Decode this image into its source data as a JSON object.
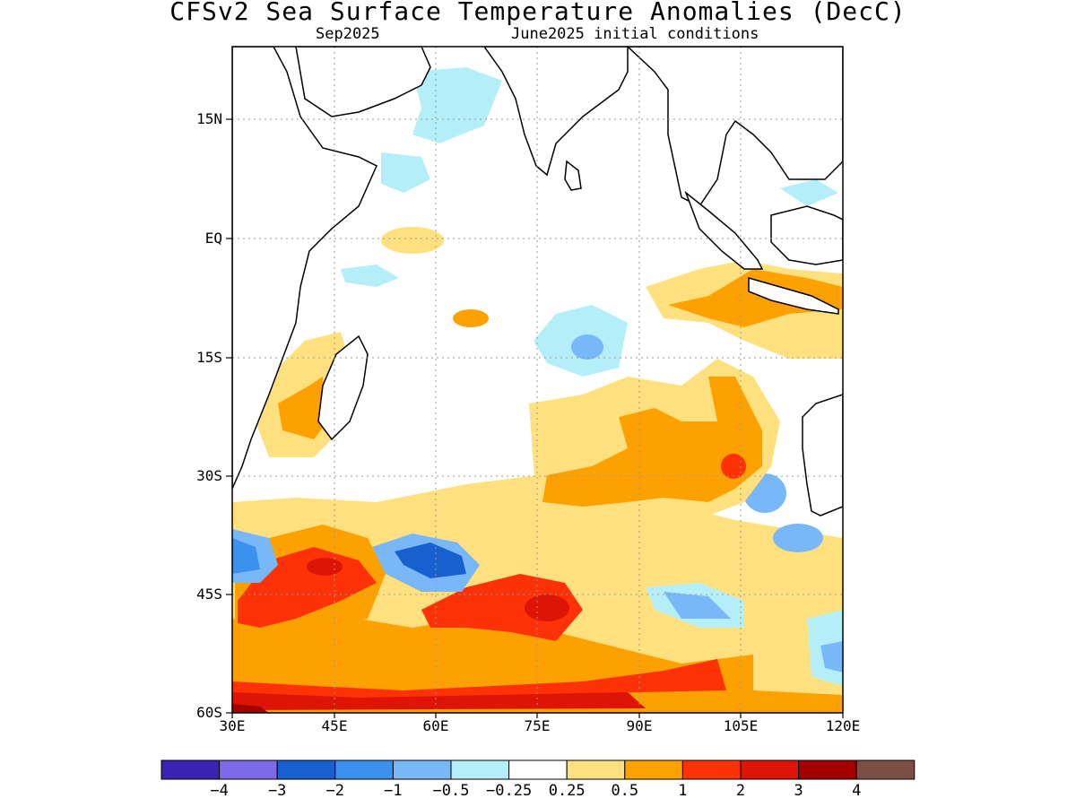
{
  "title": "CFSv2 Sea Surface Temperature Anomalies (DecC)",
  "subtitle_left": "Sep2025",
  "subtitle_right": "June2025 initial conditions",
  "lat_labels": [
    "15N",
    "EQ",
    "15S",
    "30S",
    "45S",
    "60S"
  ],
  "lon_labels": [
    "30E",
    "45E",
    "60E",
    "75E",
    "90E",
    "105E",
    "120E"
  ],
  "colorbar": {
    "colors": [
      "#3a22b4",
      "#7d6ae8",
      "#1960cf",
      "#3c91ef",
      "#78b8f8",
      "#b4eef8",
      "#ffffff",
      "#fee17e",
      "#fda100",
      "#fd3307",
      "#de1506",
      "#a40000",
      "#7b4f44"
    ],
    "labels": [
      "−4",
      "−3",
      "−2",
      "−1",
      "−0.5",
      "−0.25",
      "0.25",
      "0.5",
      "1",
      "2",
      "3",
      "4"
    ]
  }
}
